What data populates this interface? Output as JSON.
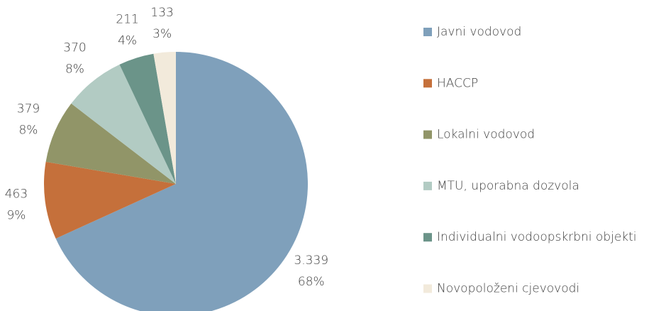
{
  "chart_data": {
    "type": "pie",
    "categories": [
      "Javni vodovod",
      "HACCP",
      "Lokalni vodovod",
      "MTU, uporabna dozvola",
      "Individualni vodoopskrbni objekti",
      "Novopoloženi cjevovodi"
    ],
    "values": [
      3339,
      463,
      379,
      370,
      211,
      133
    ],
    "value_labels": [
      "3.339",
      "463",
      "379",
      "370",
      "211",
      "133"
    ],
    "percent_values": [
      68,
      9,
      8,
      8,
      4,
      3
    ],
    "percent_labels": [
      "68%",
      "9%",
      "8%",
      "8%",
      "4%",
      "3%"
    ],
    "colors": [
      "#7fa0bb",
      "#c5703b",
      "#919568",
      "#b2cbc3",
      "#6b9489",
      "#f2eadb"
    ],
    "legend": "right"
  }
}
